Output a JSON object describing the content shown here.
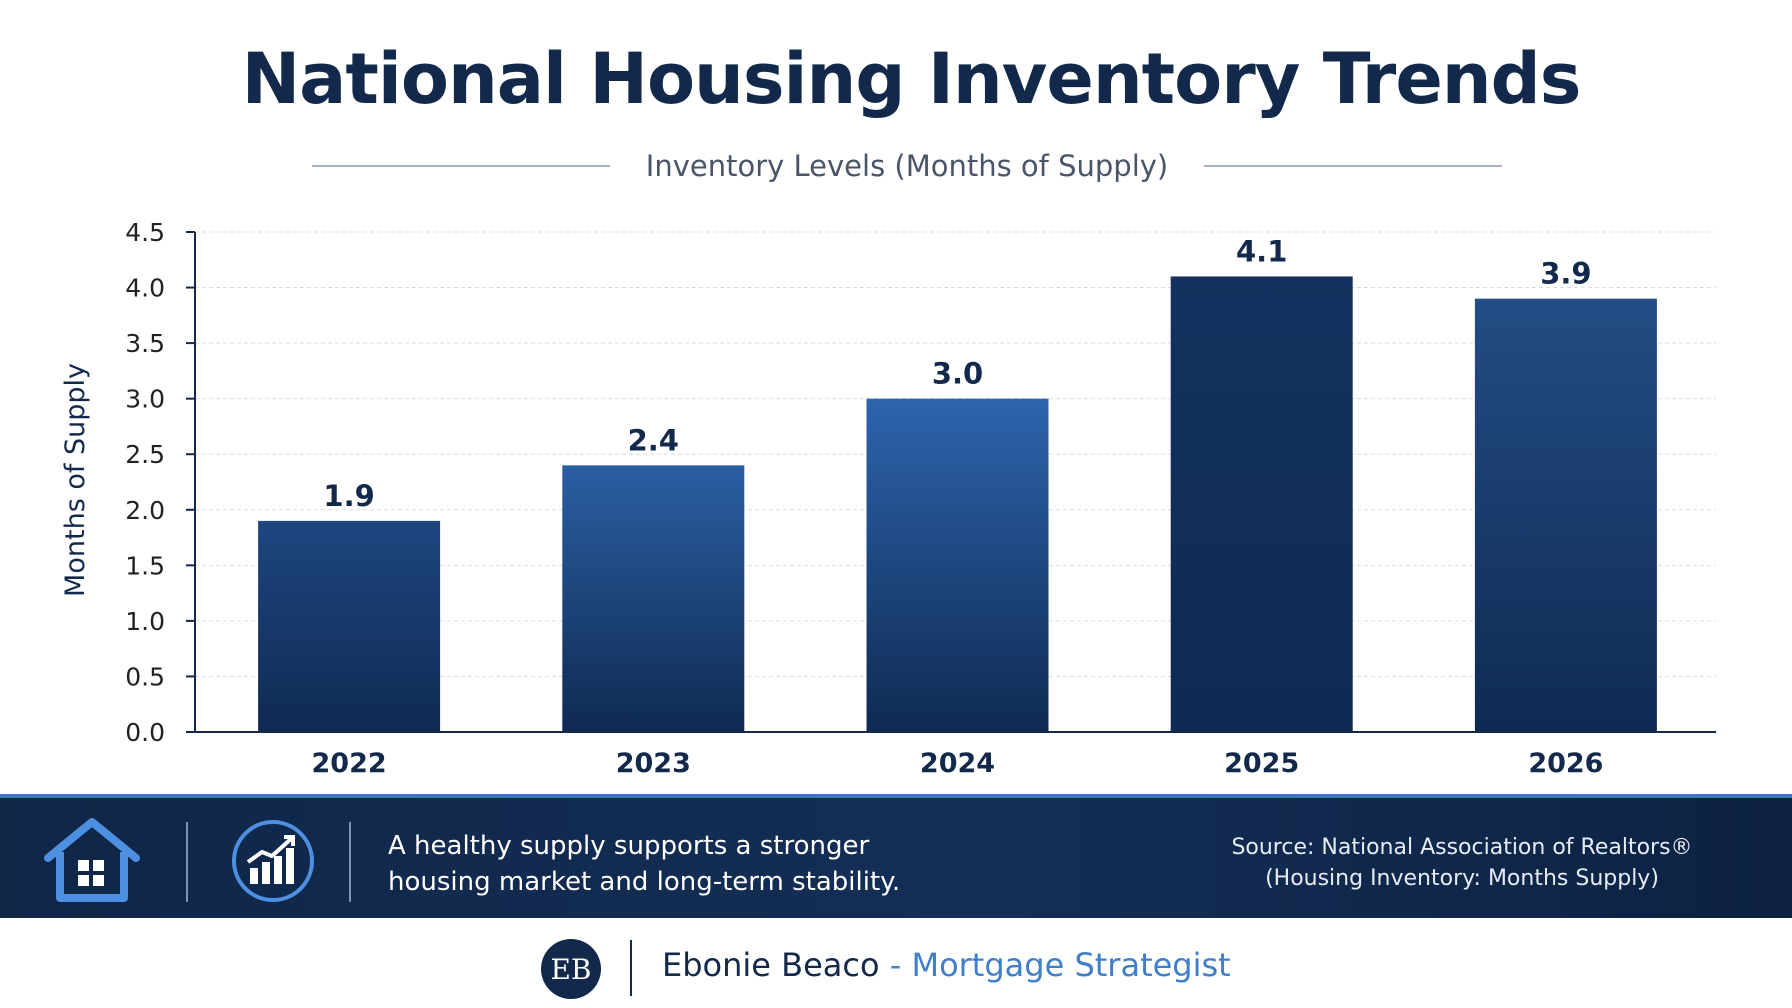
{
  "title": "National Housing Inventory Trends",
  "subtitle": "Inventory Levels (Months of Supply)",
  "chart_data": {
    "type": "bar",
    "categories": [
      "2022",
      "2023",
      "2024",
      "2025",
      "2026"
    ],
    "values": [
      1.9,
      2.4,
      3.0,
      4.1,
      3.9
    ],
    "value_labels": [
      "1.9",
      "2.4",
      "3.0",
      "4.1",
      "3.9"
    ],
    "title": "National Housing Inventory Trends",
    "subtitle": "Inventory Levels (Months of Supply)",
    "xlabel": "",
    "ylabel": "Months of Supply",
    "ylim": [
      0,
      4.5
    ],
    "yticks": [
      "0.0",
      "0.5",
      "1.0",
      "1.5",
      "2.0",
      "2.5",
      "3.0",
      "3.5",
      "4.0",
      "4.5"
    ],
    "grid": true,
    "bar_colors": [
      "#1e4680",
      "#2a5fa3",
      "#2d64ad",
      "#14315f",
      "#234d85"
    ]
  },
  "banner": {
    "message_line1": "A healthy supply supports a stronger",
    "message_line2": "housing market and long-term stability.",
    "source_line1": "Source: National Association of Realtors®",
    "source_line2": "(Housing Inventory: Months Supply)",
    "icons": [
      "house-icon",
      "chart-growth-icon"
    ]
  },
  "footer": {
    "logo_text": "EB",
    "name": "Ebonie Beaco",
    "separator": " - ",
    "role": "Mortgage Strategist"
  },
  "colors": {
    "navy": "#13294b",
    "accent": "#3b78c4",
    "banner": "#0f2647"
  }
}
